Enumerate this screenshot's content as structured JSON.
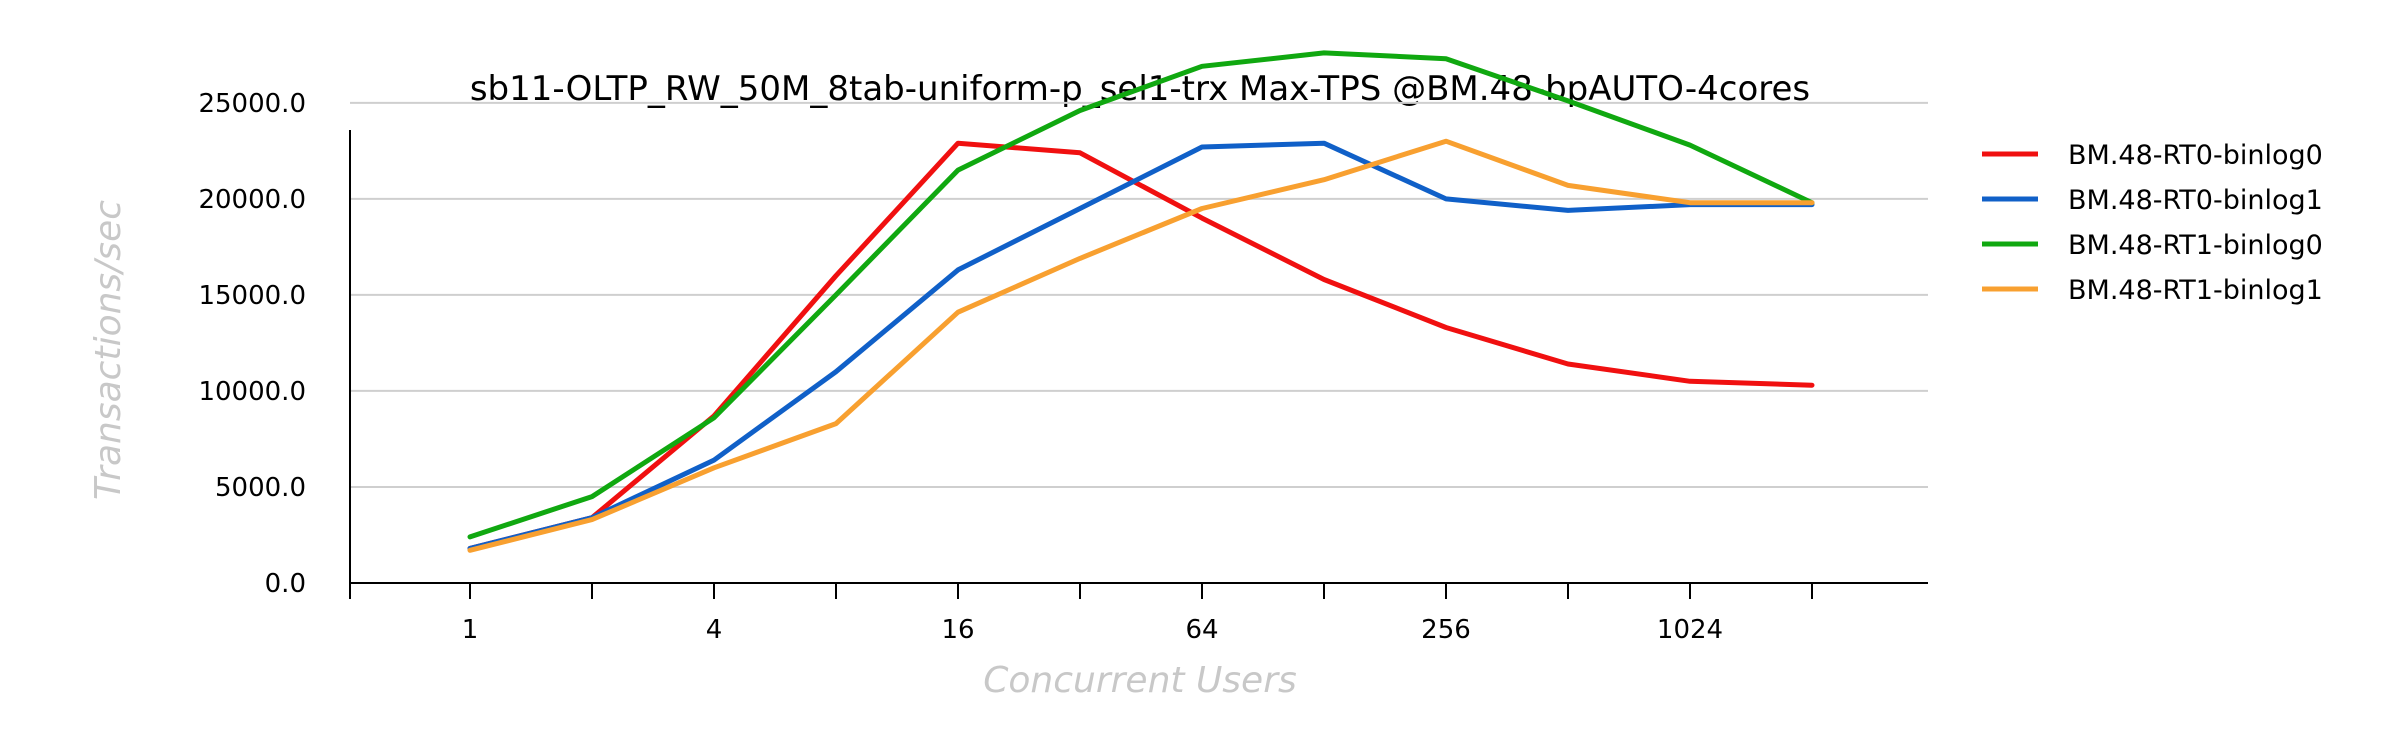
{
  "chart_data": {
    "type": "line",
    "title": "sb11-OLTP_RW_50M_8tab-uniform-p_sel1-trx Max-TPS @BM.48-bpAUTO-4cores",
    "xlabel": "Concurrent Users",
    "ylabel": "Transactions/sec",
    "x": [
      1,
      2,
      4,
      8,
      16,
      32,
      64,
      128,
      256,
      512,
      1024,
      2048
    ],
    "x_scale": "log2",
    "x_tick_labels": [
      "1",
      "4",
      "16",
      "64",
      "256",
      "1024"
    ],
    "x_tick_values": [
      1,
      4,
      16,
      64,
      256,
      1024
    ],
    "ylim": [
      0,
      29000
    ],
    "y_ticks": [
      0,
      5000,
      10000,
      15000,
      20000,
      25000
    ],
    "y_tick_labels": [
      "0.0",
      "5000.0",
      "10000.0",
      "15000.0",
      "20000.0",
      "25000.0"
    ],
    "grid": true,
    "legend_position": "right",
    "series": [
      {
        "name": "BM.48-RT0-binlog0",
        "color": "#f01010",
        "values": [
          1800,
          3400,
          8700,
          16000,
          22900,
          22400,
          19000,
          15800,
          13300,
          11400,
          10500,
          10300
        ]
      },
      {
        "name": "BM.48-RT0-binlog1",
        "color": "#1060c8",
        "values": [
          1800,
          3400,
          6400,
          11000,
          16300,
          19500,
          22700,
          22900,
          20000,
          19400,
          19700,
          19700
        ]
      },
      {
        "name": "BM.48-RT1-binlog0",
        "color": "#10a810",
        "values": [
          2400,
          4500,
          8600,
          15000,
          21500,
          24600,
          26900,
          27600,
          27300,
          25100,
          22800,
          19800
        ]
      },
      {
        "name": "BM.48-RT1-binlog1",
        "color": "#f8a030",
        "values": [
          1700,
          3300,
          6000,
          8300,
          14100,
          16900,
          19500,
          21000,
          23000,
          20700,
          19800,
          19800
        ]
      }
    ]
  }
}
